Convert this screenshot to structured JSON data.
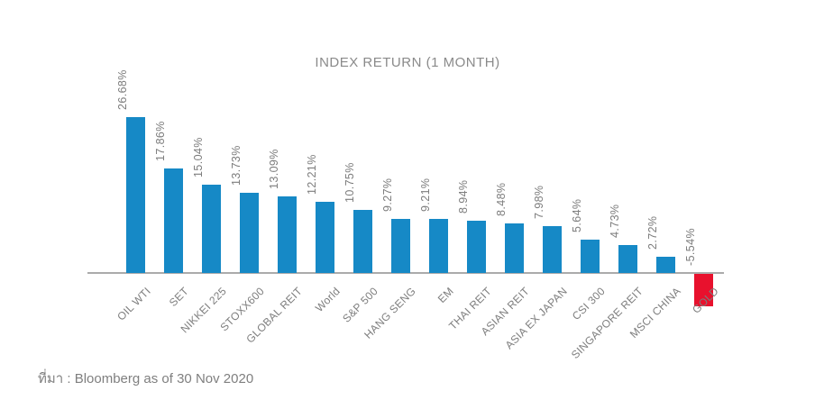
{
  "header": {
    "title": "INDEX RETURN (1 MONTH)"
  },
  "footer": {
    "source_note": "ที่มา : Bloomberg as of 30 Nov 2020"
  },
  "colors": {
    "positive_bar": "#1689C6",
    "negative_bar": "#E8112D",
    "axis_line": "#ABABAB",
    "value_label": "#7d7d7d",
    "category_label": "#7d7d7d",
    "title": "#8a8a8a",
    "source_note": "#7f7f7f"
  },
  "chart_data": {
    "type": "bar",
    "title": "INDEX RETURN (1 MONTH)",
    "categories": [
      "OIL WTI",
      "SET",
      "NIKKEI 225",
      "STOXX600",
      "GLOBAL REIT",
      "World",
      "S&P 500",
      "HANG SENG",
      "EM",
      "THAI REIT",
      "ASIAN REIT",
      "ASIA EX JAPAN",
      "CSI 300",
      "SINGAPORE REIT",
      "MSCI CHINA",
      "GOLD"
    ],
    "values": [
      26.68,
      17.86,
      15.04,
      13.73,
      13.09,
      12.21,
      10.75,
      9.27,
      9.21,
      8.94,
      8.48,
      7.98,
      5.64,
      4.73,
      2.72,
      -5.54
    ],
    "value_labels": [
      "26.68%",
      "17.86%",
      "15.04%",
      "13.73%",
      "13.09%",
      "12.21%",
      "10.75%",
      "9.27%",
      "9.21%",
      "8.94%",
      "8.48%",
      "7.98%",
      "5.64%",
      "4.73%",
      "2.72%",
      "-5.54%"
    ],
    "xlabel": "",
    "ylabel": "",
    "ylim": [
      -8,
      28
    ],
    "grid": false,
    "legend": "none",
    "bar_color_rule": "positive=blue, negative=red",
    "value_label_rotation_deg": 90,
    "category_label_rotation_deg": 45,
    "units": "%"
  }
}
